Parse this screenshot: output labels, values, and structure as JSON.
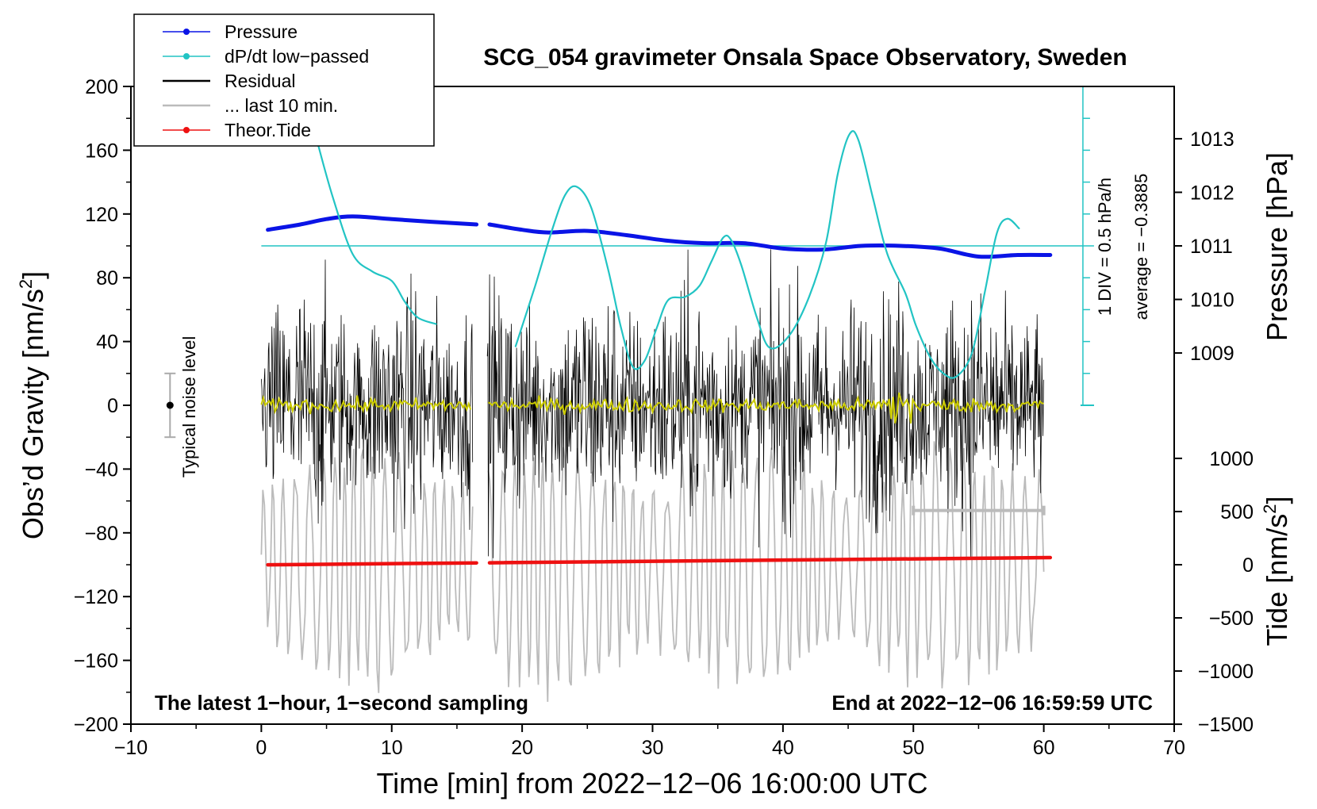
{
  "chart_data": {
    "type": "line",
    "title": "SCG_054 gravimeter Onsala Space Observatory, Sweden",
    "xlabel": "Time [min] from 2022−12−06 16:00:00 UTC",
    "ylabel_main": "Obs’d Gravity [nm/s",
    "ylabel_main_sup": "2",
    "ylabel_main_end": "]",
    "ylabel_pressure": "Pressure [hPa]",
    "ylabel_tide": "Tide [nm/s",
    "ylabel_tide_sup": "2",
    "ylabel_tide_end": "]",
    "xlim": [
      -10,
      70
    ],
    "ylim": [
      -200,
      200
    ],
    "x_ticks": [
      "−10",
      "0",
      "10",
      "20",
      "30",
      "40",
      "50",
      "60",
      "70"
    ],
    "x_tick_values": [
      -10,
      0,
      10,
      20,
      30,
      40,
      50,
      60,
      70
    ],
    "y_ticks": [
      "200",
      "160",
      "120",
      "80",
      "40",
      "0",
      "−40",
      "−80",
      "−120",
      "−160",
      "−200"
    ],
    "y_tick_values": [
      200,
      160,
      120,
      80,
      40,
      0,
      -40,
      -80,
      -120,
      -160,
      -200
    ],
    "pressure_ticks": [
      "1013",
      "1012",
      "1011",
      "1010",
      "1009"
    ],
    "pressure_tick_values": [
      1013,
      1012,
      1011,
      1010,
      1009
    ],
    "pressure_map": {
      "ref_value": 1011,
      "ref_gravity": 100,
      "gravity_per_hpa": 33.6
    },
    "tide_ticks": [
      "1000",
      "500",
      "0",
      "−500",
      "−1000",
      "−1500"
    ],
    "tide_tick_values": [
      1000,
      500,
      0,
      -500,
      -1000,
      -1500
    ],
    "tide_map": {
      "gravity_at_zero": -100,
      "gravity_per_unit": 0.0667
    },
    "corner_left": "The latest 1−hour, 1−second sampling",
    "corner_right": "End at 2022−12−06 16:59:59 UTC",
    "noise_label": "Typical noise level",
    "noise_bar": {
      "x": -7,
      "center": 0,
      "half_range": 20
    },
    "scale_label_1": "1 DIV = 0.5 hPa/h",
    "scale_label_2": "average = −0.3885",
    "dpdt_scale": {
      "x": 63,
      "baseline_gravity": 100,
      "bottom_gravity": 0,
      "top_gravity": 200,
      "divisions": 10
    },
    "last10_bar": {
      "x_start": 50,
      "x_end": 60,
      "gravity": -66
    },
    "colors": {
      "pressure": "#0a14e6",
      "dpdt": "#22c4c4",
      "residual": "#000000",
      "last10": "#bbbbbb",
      "tide": "#ee1111",
      "smoothed": "#cccc00"
    },
    "legend": [
      {
        "label": "Pressure",
        "color": "#0a14e6",
        "marker": true
      },
      {
        "label": "dP/dt low−passed",
        "color": "#22c4c4",
        "marker": true
      },
      {
        "label": "Residual",
        "color": "#000000",
        "marker": false
      },
      {
        "label": "... last 10 min.",
        "color": "#bbbbbb",
        "marker": false
      },
      {
        "label": "Theor.Tide",
        "color": "#ee1111",
        "marker": true
      }
    ],
    "series": [
      {
        "name": "Pressure",
        "unit": "hPa",
        "segments": [
          [
            [
              0.5,
              1011.3
            ],
            [
              3,
              1011.4
            ],
            [
              5,
              1011.5
            ],
            [
              7,
              1011.55
            ],
            [
              10,
              1011.5
            ],
            [
              13,
              1011.45
            ],
            [
              16.5,
              1011.4
            ]
          ],
          [
            [
              17.5,
              1011.4
            ],
            [
              20,
              1011.3
            ],
            [
              22,
              1011.25
            ],
            [
              25,
              1011.28
            ],
            [
              28,
              1011.2
            ],
            [
              31,
              1011.1
            ],
            [
              34,
              1011.05
            ],
            [
              37,
              1011.05
            ],
            [
              40,
              1010.95
            ],
            [
              43,
              1010.93
            ],
            [
              46,
              1011.0
            ],
            [
              49,
              1011.0
            ],
            [
              52,
              1010.95
            ],
            [
              55,
              1010.8
            ],
            [
              58,
              1010.83
            ],
            [
              60.5,
              1010.83
            ]
          ]
        ]
      },
      {
        "name": "dP/dt low-passed",
        "unit": "gravity-axis",
        "segments": [
          [
            [
              4.3,
              165
            ],
            [
              5.5,
              130
            ],
            [
              7,
              95
            ],
            [
              8.5,
              84
            ],
            [
              10,
              78
            ],
            [
              11,
              65
            ],
            [
              12,
              55
            ],
            [
              13.4,
              51
            ]
          ],
          [
            [
              19.5,
              37
            ],
            [
              21,
              75
            ],
            [
              22.3,
              110
            ],
            [
              23.3,
              132
            ],
            [
              24.2,
              137
            ],
            [
              25.3,
              124
            ],
            [
              26.6,
              85
            ],
            [
              27.6,
              48
            ],
            [
              28.5,
              24
            ],
            [
              29.4,
              28
            ],
            [
              30.3,
              48
            ],
            [
              31.2,
              66
            ],
            [
              32.5,
              68
            ],
            [
              33.6,
              75
            ],
            [
              34.5,
              90
            ],
            [
              35.4,
              105
            ],
            [
              36.0,
              104
            ],
            [
              36.8,
              88
            ],
            [
              38,
              55
            ],
            [
              39,
              36
            ],
            [
              40.5,
              44
            ],
            [
              42,
              68
            ],
            [
              43.3,
              102
            ],
            [
              44.2,
              145
            ],
            [
              45.1,
              170
            ],
            [
              45.8,
              166
            ],
            [
              46.9,
              130
            ],
            [
              48,
              95
            ],
            [
              49.4,
              70
            ],
            [
              50.2,
              50
            ],
            [
              51.3,
              30
            ],
            [
              52.3,
              20
            ],
            [
              53.3,
              18
            ],
            [
              54.5,
              33
            ],
            [
              55.5,
              72
            ],
            [
              56.4,
              108
            ],
            [
              57.2,
              117
            ],
            [
              58.1,
              111
            ]
          ]
        ]
      },
      {
        "name": "Theor.Tide",
        "unit": "nm/s2",
        "segments": [
          [
            [
              0.5,
              -1
            ],
            [
              16.5,
              17
            ]
          ],
          [
            [
              17.5,
              18
            ],
            [
              60.5,
              67
            ]
          ]
        ]
      }
    ]
  }
}
